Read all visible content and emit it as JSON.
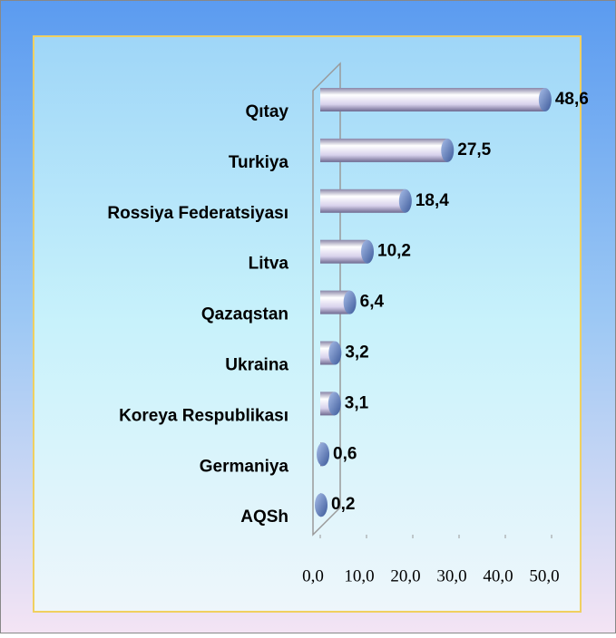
{
  "chart_data": {
    "type": "bar",
    "orientation": "horizontal",
    "categories": [
      "Qıtay",
      "Turkiya",
      "Rossiya Federatsiyası",
      "Litva",
      "Qazaqstan",
      "Ukraina",
      "Koreya Respublikası",
      "Germaniya",
      "AQSh"
    ],
    "values": [
      48.6,
      27.5,
      18.4,
      10.2,
      6.4,
      3.2,
      3.1,
      0.6,
      0.2
    ],
    "value_labels": [
      "48,6",
      "27,5",
      "18,4",
      "10,2",
      "6,4",
      "3,2",
      "3,1",
      "0,6",
      "0,2"
    ],
    "color": "#c9c3e0",
    "xlim": [
      0,
      50
    ],
    "xticks": [
      {
        "value": 0,
        "label": "0,0"
      },
      {
        "value": 10,
        "label": "10,0"
      },
      {
        "value": 20,
        "label": "20,0"
      },
      {
        "value": 30,
        "label": "30,0"
      },
      {
        "value": 40,
        "label": "40,0"
      },
      {
        "value": 50,
        "label": "50,0"
      }
    ]
  }
}
